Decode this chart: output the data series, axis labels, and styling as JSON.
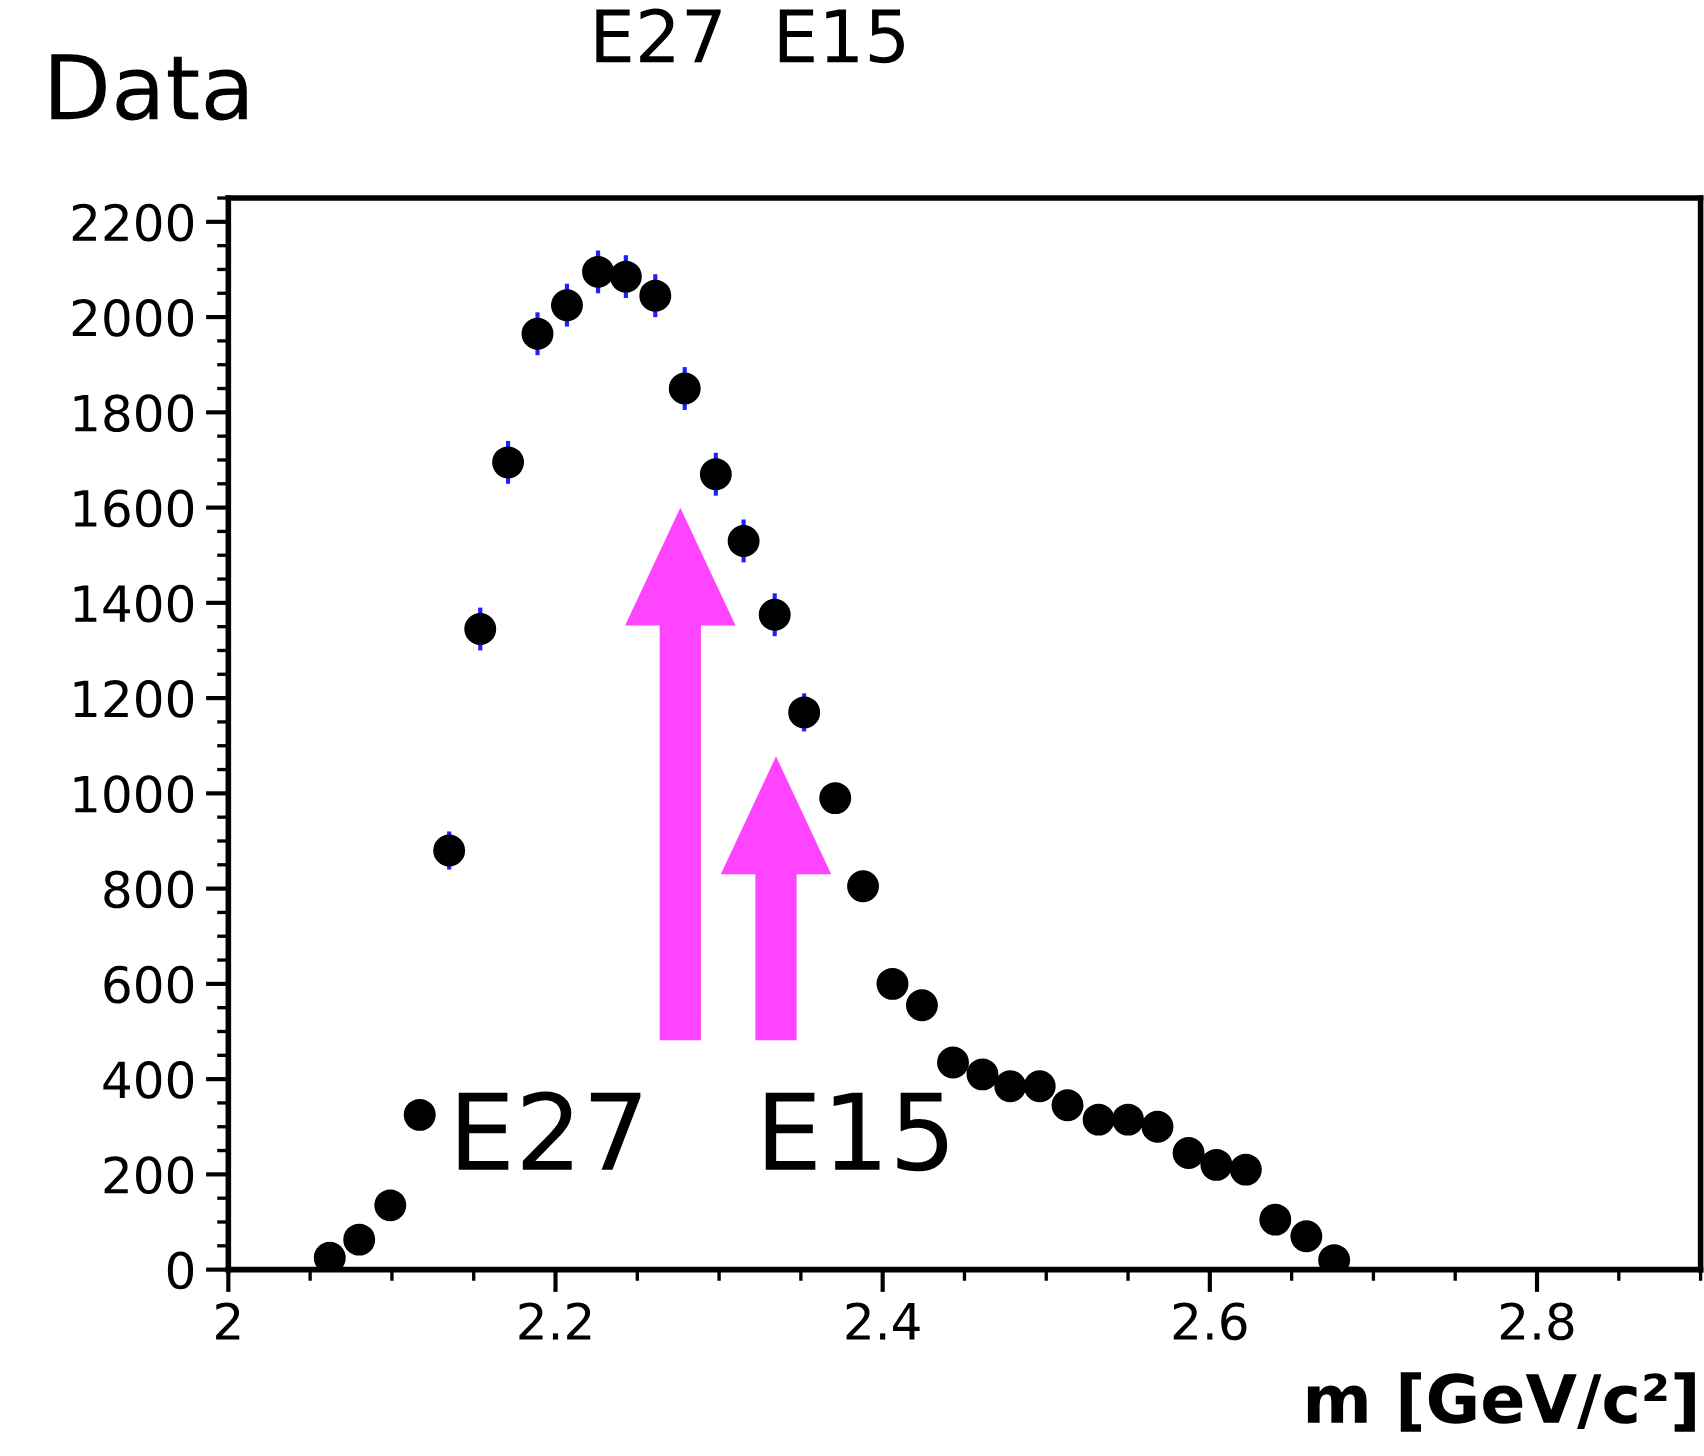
{
  "chart_data": {
    "type": "scatter",
    "title": "Data",
    "xlabel": "m [GeV/c²]",
    "x": [
      2.062,
      2.08,
      2.099,
      2.117,
      2.135,
      2.154,
      2.171,
      2.189,
      2.207,
      2.226,
      2.243,
      2.261,
      2.279,
      2.298,
      2.315,
      2.334,
      2.352,
      2.371,
      2.388,
      2.406,
      2.424,
      2.443,
      2.461,
      2.478,
      2.496,
      2.513,
      2.532,
      2.55,
      2.568,
      2.587,
      2.604,
      2.622,
      2.64,
      2.659,
      2.676
    ],
    "series": [
      {
        "color": "#000000",
        "values": [
          25,
          63,
          135,
          325,
          880,
          1345,
          1695,
          1965,
          2025,
          2095,
          2085,
          2045,
          1850,
          1670,
          1530,
          1375,
          1170,
          990,
          805,
          600,
          555,
          435,
          410,
          385,
          385,
          345,
          315,
          315,
          300,
          245,
          220,
          210,
          105,
          70,
          20
        ],
        "errors": [
          null,
          null,
          null,
          null,
          40,
          45,
          45,
          45,
          45,
          45,
          45,
          45,
          45,
          45,
          45,
          45,
          40,
          null,
          null,
          null,
          null,
          null,
          null,
          null,
          null,
          null,
          null,
          null,
          null,
          null,
          null,
          null,
          null,
          null,
          null
        ]
      }
    ],
    "marker": "circle",
    "xlim": [
      2,
      2.9
    ],
    "xticks": [
      2,
      2.2,
      2.4,
      2.6,
      2.8
    ],
    "ylim": [
      0,
      2250
    ],
    "yticks": [
      0,
      200,
      400,
      600,
      800,
      1000,
      1200,
      1400,
      1600,
      1800,
      2000,
      2200
    ],
    "grid": false,
    "legend": false,
    "annotations": [
      "E27",
      "E15",
      "E27  E15"
    ]
  }
}
